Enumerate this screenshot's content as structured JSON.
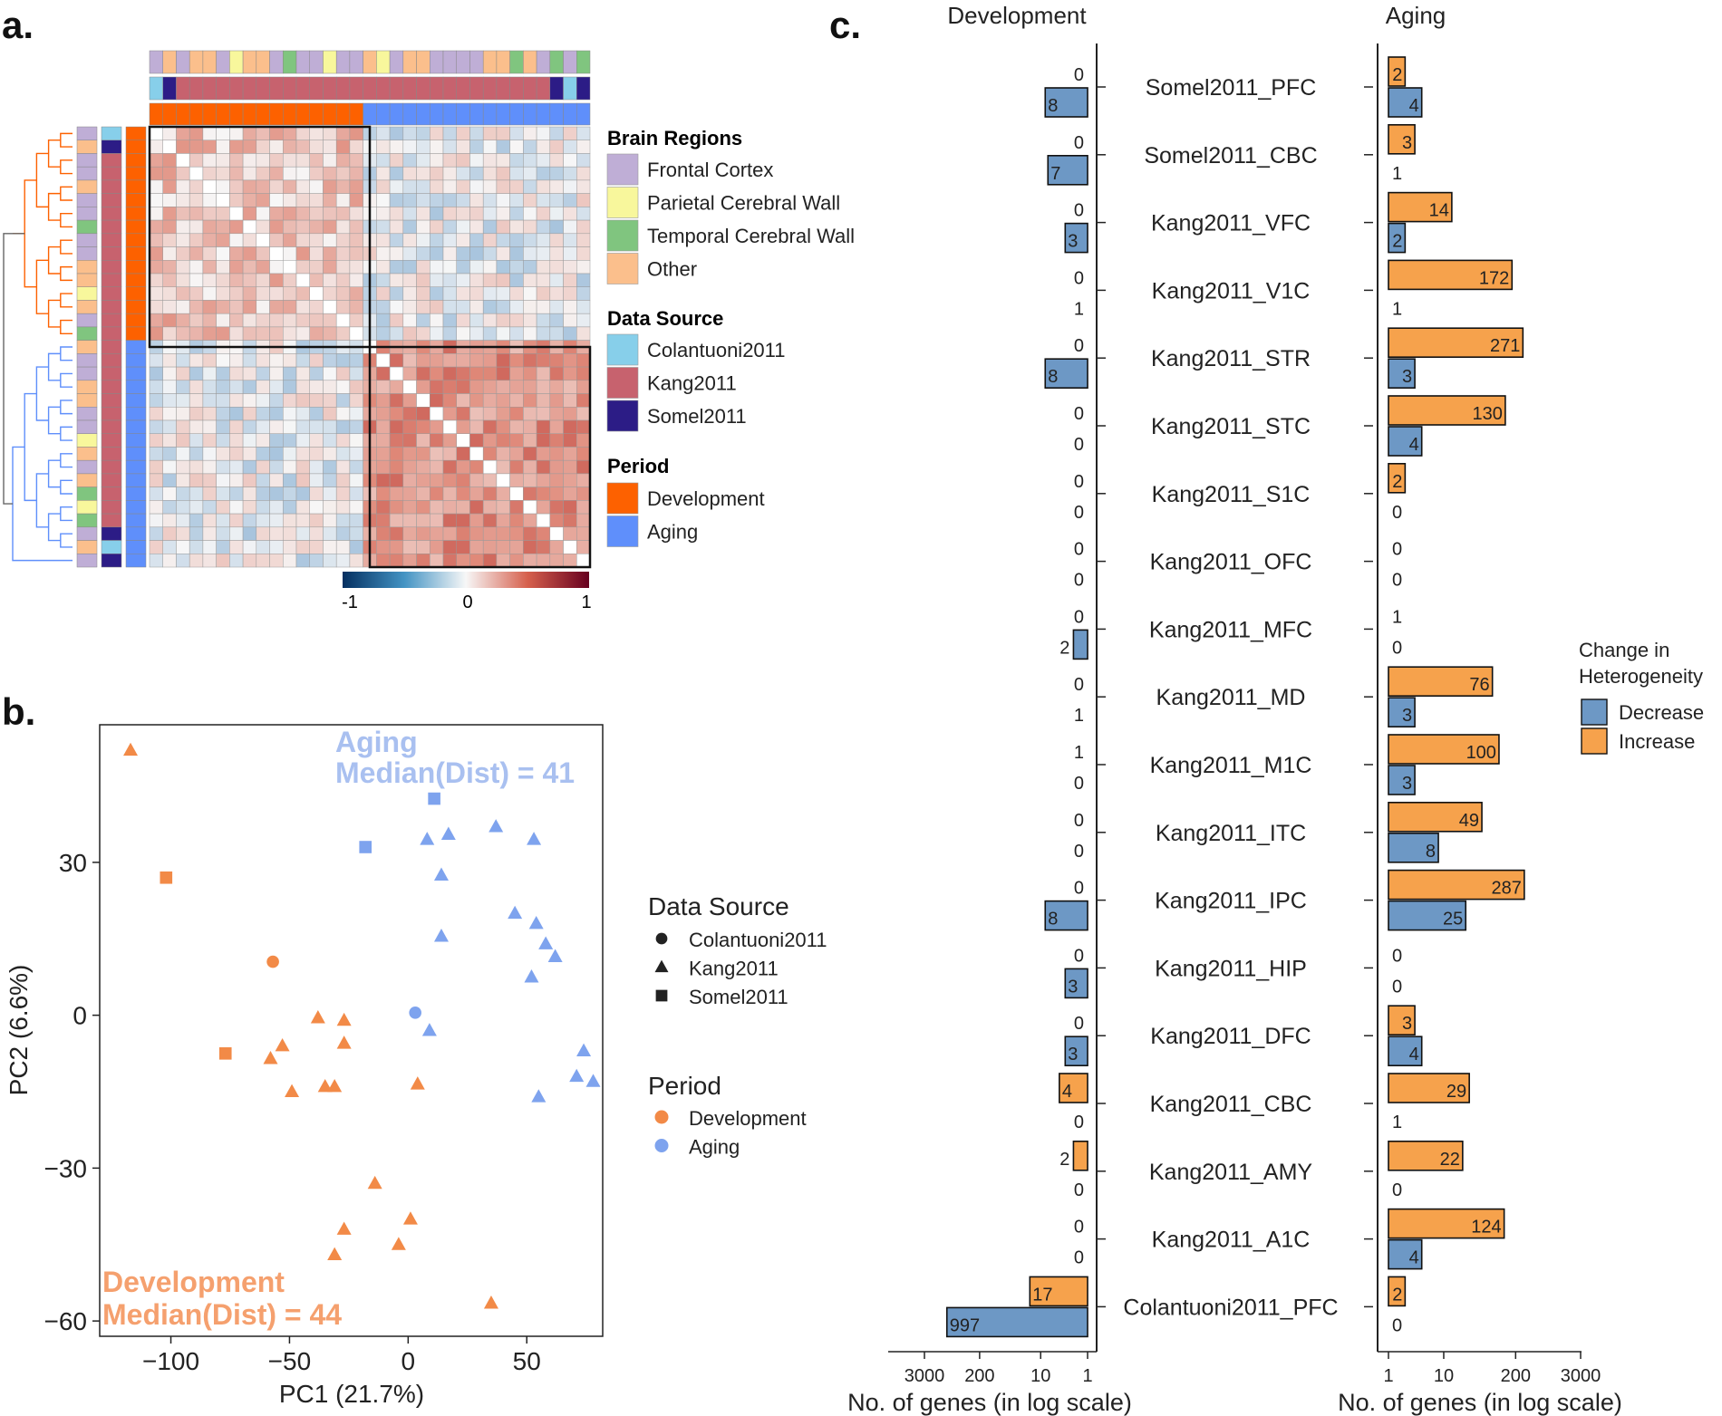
{
  "panel_labels": {
    "a": "a.",
    "b": "b.",
    "c": "c."
  },
  "colors": {
    "frontal": "#bfaed6",
    "parietal": "#f8f79c",
    "temporal": "#80c57f",
    "other": "#fbbf8c",
    "colantuoni": "#87cfea",
    "kang": "#c7626e",
    "somel": "#2c1c86",
    "development": "#fd6100",
    "aging": "#5f8ffb",
    "dev_point": "#f28a47",
    "aging_point": "#7ea3ee",
    "decrease": "#6d98c5",
    "increase": "#f6a24c",
    "corr_pos": "#c24a45",
    "corr_neg": "#4a84bb"
  },
  "legend_a": {
    "brain_regions_title": "Brain Regions",
    "brain_regions": [
      {
        "label": "Frontal Cortex",
        "color": "#bfaed6"
      },
      {
        "label": "Parietal Cerebral Wall",
        "color": "#f8f79c"
      },
      {
        "label": "Temporal Cerebral Wall",
        "color": "#80c57f"
      },
      {
        "label": "Other",
        "color": "#fbbf8c"
      }
    ],
    "data_source_title": "Data Source",
    "data_sources": [
      {
        "label": "Colantuoni2011",
        "color": "#87cfea"
      },
      {
        "label": "Kang2011",
        "color": "#c7626e"
      },
      {
        "label": "Somel2011",
        "color": "#2c1c86"
      }
    ],
    "period_title": "Period",
    "periods": [
      {
        "label": "Development",
        "color": "#fd6100"
      },
      {
        "label": "Aging",
        "color": "#5f8ffb"
      }
    ],
    "colorbar_ticks": [
      "-1",
      "0",
      "1"
    ]
  },
  "chart_data": [
    {
      "type": "heatmap",
      "title": "",
      "n_samples": 33,
      "n_development": 16,
      "n_aging": 17,
      "value_range": [
        -1,
        1
      ],
      "colorbar_ticks": [
        "-1",
        "0",
        "1"
      ],
      "mean_correlation_within_development": 0.25,
      "mean_correlation_within_aging": 0.45,
      "mean_correlation_between": 0.0
    },
    {
      "type": "scatter",
      "xlabel": "PC1 (21.7%)",
      "ylabel": "PC2 (6.6%)",
      "xlim": [
        -130,
        82
      ],
      "ylim": [
        -63,
        57
      ],
      "xticks": [
        -100,
        -50,
        0,
        50
      ],
      "xtick_labels": [
        "−100",
        "−50",
        "0",
        "50"
      ],
      "yticks": [
        30,
        0,
        -30,
        -60
      ],
      "ytick_labels": [
        "30",
        "0",
        "−30",
        "−60"
      ],
      "annotation_aging": [
        "Aging",
        "Median(Dist) = 41"
      ],
      "annotation_development": [
        "Development",
        "Median(Dist) = 44"
      ],
      "legend_shape_title": "Data Source",
      "legend_shapes": [
        {
          "label": "Colantuoni2011",
          "shape": "circle"
        },
        {
          "label": "Kang2011",
          "shape": "triangle"
        },
        {
          "label": "Somel2011",
          "shape": "square"
        }
      ],
      "legend_color_title": "Period",
      "legend_colors": [
        {
          "label": "Development",
          "color": "#f28a47"
        },
        {
          "label": "Aging",
          "color": "#7ea3ee"
        }
      ],
      "points": [
        {
          "x": -117,
          "y": 52,
          "shape": "triangle",
          "period": "Development"
        },
        {
          "x": -102,
          "y": 27,
          "shape": "square",
          "period": "Development"
        },
        {
          "x": -57,
          "y": 10.5,
          "shape": "circle",
          "period": "Development"
        },
        {
          "x": -77,
          "y": -7.5,
          "shape": "square",
          "period": "Development"
        },
        {
          "x": -58,
          "y": -8.5,
          "shape": "triangle",
          "period": "Development"
        },
        {
          "x": -53,
          "y": -6,
          "shape": "triangle",
          "period": "Development"
        },
        {
          "x": -49,
          "y": -15,
          "shape": "triangle",
          "period": "Development"
        },
        {
          "x": -38,
          "y": -0.5,
          "shape": "triangle",
          "period": "Development"
        },
        {
          "x": -35,
          "y": -14,
          "shape": "triangle",
          "period": "Development"
        },
        {
          "x": -31,
          "y": -14,
          "shape": "triangle",
          "period": "Development"
        },
        {
          "x": -27,
          "y": -1,
          "shape": "triangle",
          "period": "Development"
        },
        {
          "x": -27,
          "y": -5.5,
          "shape": "triangle",
          "period": "Development"
        },
        {
          "x": 4,
          "y": -13.5,
          "shape": "triangle",
          "period": "Development"
        },
        {
          "x": -14,
          "y": -33,
          "shape": "triangle",
          "period": "Development"
        },
        {
          "x": -27,
          "y": -42,
          "shape": "triangle",
          "period": "Development"
        },
        {
          "x": 1,
          "y": -40,
          "shape": "triangle",
          "period": "Development"
        },
        {
          "x": -31,
          "y": -47,
          "shape": "triangle",
          "period": "Development"
        },
        {
          "x": -4,
          "y": -45,
          "shape": "triangle",
          "period": "Development"
        },
        {
          "x": 35,
          "y": -56.5,
          "shape": "triangle",
          "period": "Development"
        },
        {
          "x": 11,
          "y": 42.5,
          "shape": "square",
          "period": "Aging"
        },
        {
          "x": -18,
          "y": 33,
          "shape": "square",
          "period": "Aging"
        },
        {
          "x": 37,
          "y": 37,
          "shape": "triangle",
          "period": "Aging"
        },
        {
          "x": 53,
          "y": 34.5,
          "shape": "triangle",
          "period": "Aging"
        },
        {
          "x": 8,
          "y": 34.5,
          "shape": "triangle",
          "period": "Aging"
        },
        {
          "x": 17,
          "y": 35.5,
          "shape": "triangle",
          "period": "Aging"
        },
        {
          "x": 14,
          "y": 27.5,
          "shape": "triangle",
          "period": "Aging"
        },
        {
          "x": 45,
          "y": 20,
          "shape": "triangle",
          "period": "Aging"
        },
        {
          "x": 54,
          "y": 18,
          "shape": "triangle",
          "period": "Aging"
        },
        {
          "x": 58,
          "y": 14,
          "shape": "triangle",
          "period": "Aging"
        },
        {
          "x": 62,
          "y": 11.5,
          "shape": "triangle",
          "period": "Aging"
        },
        {
          "x": 14,
          "y": 15.5,
          "shape": "triangle",
          "period": "Aging"
        },
        {
          "x": 52,
          "y": 7.5,
          "shape": "triangle",
          "period": "Aging"
        },
        {
          "x": 3,
          "y": 0.5,
          "shape": "circle",
          "period": "Aging"
        },
        {
          "x": 9,
          "y": -3,
          "shape": "triangle",
          "period": "Aging"
        },
        {
          "x": 74,
          "y": -7,
          "shape": "triangle",
          "period": "Aging"
        },
        {
          "x": 71,
          "y": -12,
          "shape": "triangle",
          "period": "Aging"
        },
        {
          "x": 78,
          "y": -13,
          "shape": "triangle",
          "period": "Aging"
        },
        {
          "x": 55,
          "y": -16,
          "shape": "triangle",
          "period": "Aging"
        }
      ]
    },
    {
      "type": "bar",
      "orientation": "horizontal",
      "scale": "log",
      "facet_titles": [
        "Development",
        "Aging"
      ],
      "xlabel": "No. of genes (in log scale)",
      "xticks": [
        1,
        10,
        200,
        3000
      ],
      "xtick_labels_development": [
        "3000",
        "200",
        "10",
        "1"
      ],
      "xtick_labels_aging": [
        "1",
        "10",
        "200",
        "3000"
      ],
      "legend_title": [
        "Change in",
        "Heterogeneity"
      ],
      "legend": [
        {
          "label": "Decrease",
          "color": "#6d98c5"
        },
        {
          "label": "Increase",
          "color": "#f6a24c"
        }
      ],
      "categories": [
        "Somel2011_PFC",
        "Somel2011_CBC",
        "Kang2011_VFC",
        "Kang2011_V1C",
        "Kang2011_STR",
        "Kang2011_STC",
        "Kang2011_S1C",
        "Kang2011_OFC",
        "Kang2011_MFC",
        "Kang2011_MD",
        "Kang2011_M1C",
        "Kang2011_ITC",
        "Kang2011_IPC",
        "Kang2011_HIP",
        "Kang2011_DFC",
        "Kang2011_CBC",
        "Kang2011_AMY",
        "Kang2011_A1C",
        "Colantuoni2011_PFC"
      ],
      "series": [
        {
          "name": "Development Increase",
          "values": [
            0,
            0,
            0,
            0,
            0,
            0,
            0,
            0,
            0,
            0,
            1,
            0,
            0,
            0,
            0,
            4,
            2,
            0,
            17
          ]
        },
        {
          "name": "Development Decrease",
          "values": [
            8,
            7,
            3,
            1,
            8,
            0,
            0,
            0,
            2,
            1,
            0,
            0,
            8,
            3,
            3,
            0,
            0,
            0,
            997
          ]
        },
        {
          "name": "Aging Increase",
          "values": [
            2,
            3,
            14,
            172,
            271,
            130,
            2,
            0,
            1,
            76,
            100,
            49,
            287,
            0,
            3,
            29,
            22,
            124,
            2
          ]
        },
        {
          "name": "Aging Decrease",
          "values": [
            4,
            1,
            2,
            1,
            3,
            4,
            0,
            0,
            0,
            3,
            3,
            8,
            25,
            0,
            4,
            1,
            0,
            4,
            0
          ]
        }
      ]
    }
  ]
}
